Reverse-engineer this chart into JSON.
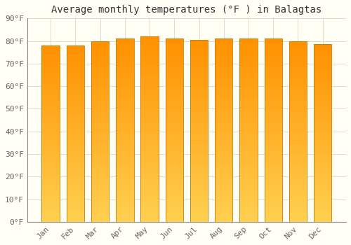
{
  "title": "Average monthly temperatures (°F ) in Balagtas",
  "months": [
    "Jan",
    "Feb",
    "Mar",
    "Apr",
    "May",
    "Jun",
    "Jul",
    "Aug",
    "Sep",
    "Oct",
    "Nov",
    "Dec"
  ],
  "values": [
    78,
    78,
    80,
    81,
    82,
    81,
    80.5,
    81,
    81,
    81,
    80,
    78.5
  ],
  "ylim": [
    0,
    90
  ],
  "yticks": [
    0,
    10,
    20,
    30,
    40,
    50,
    60,
    70,
    80,
    90
  ],
  "ytick_labels": [
    "0°F",
    "10°F",
    "20°F",
    "30°F",
    "40°F",
    "50°F",
    "60°F",
    "70°F",
    "80°F",
    "90°F"
  ],
  "bar_color_bottom": "#FFD050",
  "bar_color_top": "#FFA500",
  "bar_edge_color": "#CC7700",
  "background_color": "#FFFFF5",
  "grid_color": "#DDDDCC",
  "title_fontsize": 10,
  "tick_fontsize": 8,
  "font_family": "monospace",
  "bar_width": 0.72
}
